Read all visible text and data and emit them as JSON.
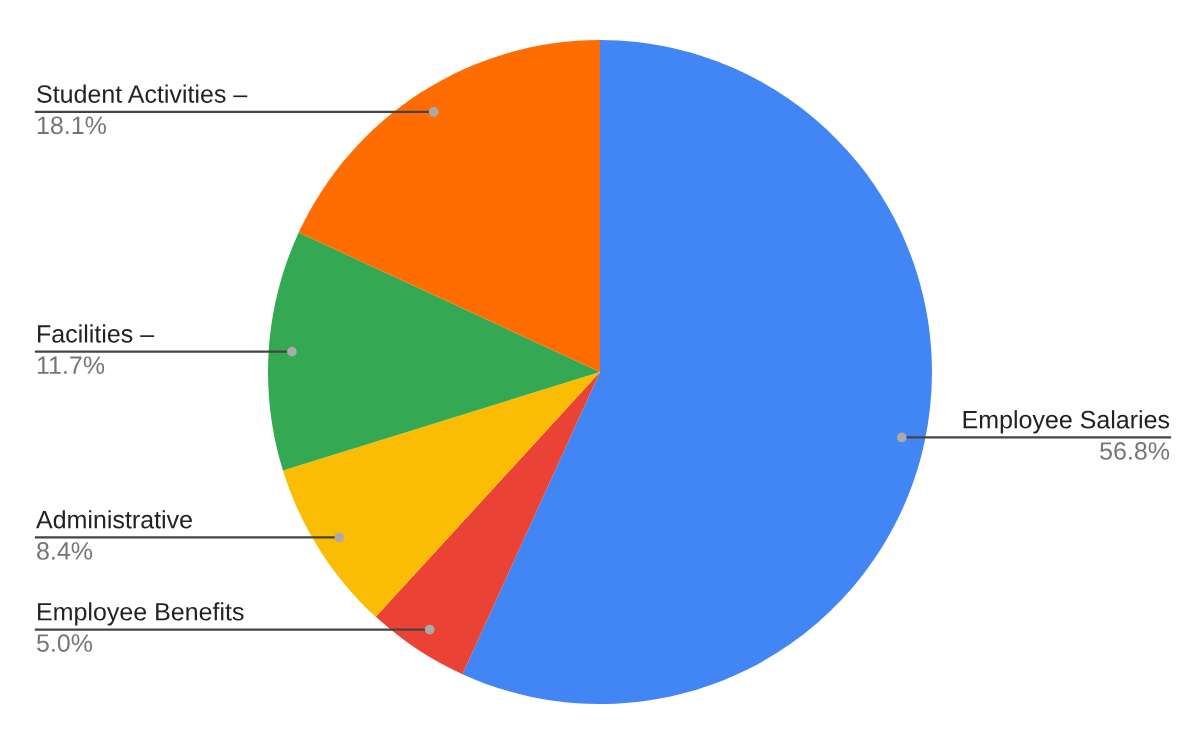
{
  "chart_data": {
    "type": "pie",
    "categories": [
      "Employee Salaries",
      "Employee Benefits",
      "Administrative",
      "Facilities –",
      "Student Activities –"
    ],
    "values": [
      56.8,
      5.0,
      8.4,
      11.7,
      18.1
    ],
    "value_labels": [
      "56.8%",
      "5.0%",
      "8.4%",
      "11.7%",
      "18.1%"
    ],
    "colors": [
      "#4285f4",
      "#ea4335",
      "#fbbc04",
      "#34a853",
      "#ff6d01"
    ],
    "legend": false
  }
}
